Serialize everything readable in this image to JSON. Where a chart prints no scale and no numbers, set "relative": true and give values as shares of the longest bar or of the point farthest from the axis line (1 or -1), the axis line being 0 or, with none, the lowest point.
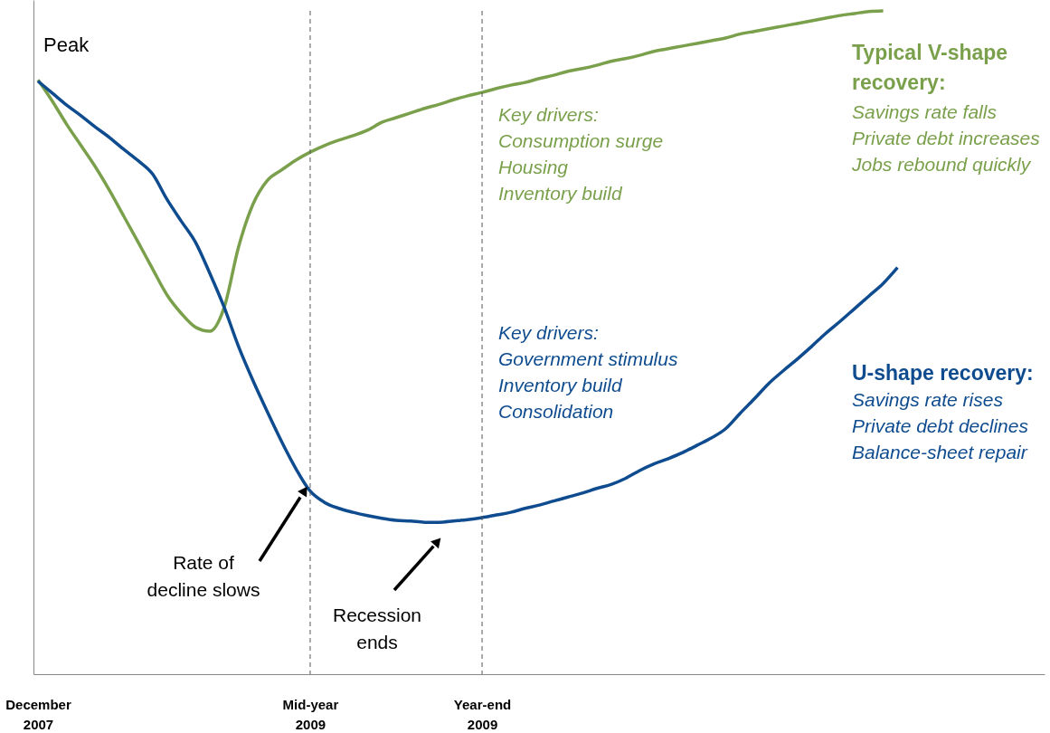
{
  "chart_data": {
    "type": "line",
    "relative": true,
    "categories": [
      "December 2007",
      null,
      null,
      null,
      null,
      null,
      null,
      null,
      null,
      null,
      null,
      null,
      null,
      null,
      null,
      null,
      null,
      null,
      null,
      "Mid-year 2009",
      null,
      null,
      null,
      null,
      null,
      null,
      null,
      null,
      null,
      null,
      null,
      "Year-end 2009",
      null,
      null,
      null,
      null,
      null,
      null,
      null,
      null,
      null,
      null,
      null,
      null,
      null,
      null,
      null,
      null,
      null,
      null,
      null,
      null,
      null,
      null,
      null,
      null,
      null,
      null,
      null,
      null,
      null
    ],
    "tick_labels": "x",
    "grid": false,
    "marker": "none",
    "line_style": "solid",
    "series": [
      {
        "name": "Typical V-shape recovery:",
        "color": "#7aa04c",
        "values": [
          0.896,
          0.864,
          0.829,
          0.797,
          0.765,
          0.729,
          0.69,
          0.651,
          0.611,
          0.572,
          0.544,
          0.523,
          0.517,
          0.553,
          0.644,
          0.708,
          0.744,
          0.76,
          0.775,
          0.787,
          0.797,
          0.805,
          0.812,
          0.82,
          0.832,
          0.839,
          0.846,
          0.853,
          0.859,
          0.866,
          0.872,
          0.877,
          0.883,
          0.888,
          0.892,
          0.898,
          0.903,
          0.909,
          0.913,
          0.918,
          0.924,
          0.928,
          0.933,
          0.939,
          0.943,
          0.947,
          0.951,
          0.955,
          0.959,
          0.965,
          0.969,
          0.973,
          0.977,
          0.981,
          0.985,
          0.989,
          0.993,
          0.996,
          0.999,
          1.0,
          null
        ]
      },
      {
        "name": "U-shape recovery:",
        "color": "#0f4c8f",
        "values": [
          0.894,
          0.876,
          0.858,
          0.842,
          0.825,
          0.809,
          0.791,
          0.774,
          0.754,
          0.716,
          0.683,
          0.651,
          0.604,
          0.553,
          0.494,
          0.443,
          0.396,
          0.351,
          0.31,
          0.276,
          0.259,
          0.25,
          0.244,
          0.239,
          0.235,
          0.232,
          0.231,
          0.229,
          0.229,
          0.231,
          0.233,
          0.236,
          0.24,
          0.244,
          0.25,
          0.255,
          0.261,
          0.267,
          0.273,
          0.28,
          0.286,
          0.295,
          0.307,
          0.317,
          0.325,
          0.334,
          0.345,
          0.356,
          0.37,
          0.393,
          0.415,
          0.438,
          0.457,
          0.475,
          0.494,
          0.514,
          0.532,
          0.551,
          0.57,
          0.589,
          0.613
        ]
      }
    ],
    "ref_lines": [
      {
        "axis": "x",
        "value": "Mid-year 2009",
        "color": "#555555",
        "line_style": "dashed"
      },
      {
        "axis": "x",
        "value": "Year-end 2009",
        "color": "#555555",
        "line_style": "dashed"
      }
    ],
    "annotations": [
      "Peak",
      "Key drivers:\nConsumption surge\nHousing\nInventory build",
      "Key drivers:\nGovernment stimulus\nInventory build\nConsolidation",
      "Savings rate falls\nPrivate debt increases\nJobs rebound quickly",
      "Savings rate rises\nPrivate debt declines\nBalance-sheet repair",
      "Rate of\ndecline slows",
      "Recession\nends"
    ]
  }
}
